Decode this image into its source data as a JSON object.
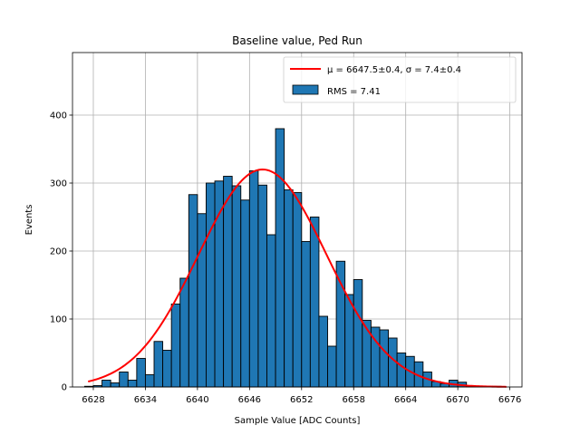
{
  "chart_data": {
    "type": "bar",
    "title": "Baseline value, Ped Run",
    "xlabel": "Sample Value [ADC Counts]",
    "ylabel": "Events",
    "xlim": [
      6625.6,
      6677.4
    ],
    "ylim": [
      0,
      492
    ],
    "grid": true,
    "legend_position": "top-right",
    "xticks": [
      6628,
      6634,
      6640,
      6646,
      6652,
      6658,
      6664,
      6670,
      6676
    ],
    "yticks": [
      0,
      100,
      200,
      300,
      400
    ],
    "bar_color": "#1f77b4",
    "fit_color": "#ff0000",
    "histogram": {
      "name": "RMS = 7.41",
      "bin_left": [
        6627.0,
        6628.0,
        6629.0,
        6630.0,
        6631.0,
        6632.0,
        6633.0,
        6634.0,
        6635.0,
        6636.0,
        6637.0,
        6638.0,
        6639.0,
        6640.0,
        6641.0,
        6642.0,
        6643.0,
        6644.0,
        6645.0,
        6646.0,
        6647.0,
        6648.0,
        6649.0,
        6650.0,
        6651.0,
        6652.0,
        6653.0,
        6654.0,
        6655.0,
        6656.0,
        6657.0,
        6658.0,
        6659.0,
        6660.0,
        6661.0,
        6662.0,
        6663.0,
        6664.0,
        6665.0,
        6666.0,
        6667.0,
        6668.0,
        6669.0,
        6670.0,
        6671.0,
        6672.0,
        6673.0,
        6674.0
      ],
      "bin_width": 1.0,
      "counts": [
        1,
        2,
        10,
        6,
        22,
        10,
        42,
        18,
        67,
        54,
        122,
        160,
        283,
        255,
        300,
        303,
        310,
        296,
        275,
        318,
        297,
        224,
        380,
        290,
        286,
        214,
        250,
        104,
        60,
        185,
        136,
        158,
        98,
        88,
        84,
        72,
        50,
        45,
        37,
        22,
        8,
        5,
        10,
        7,
        2,
        1,
        1,
        1
      ]
    },
    "fit": {
      "name": "μ = 6647.5±0.4, σ = 7.4±0.4",
      "mu": 6647.5,
      "sigma": 7.4,
      "amplitude": 320,
      "x_range": [
        6627.4,
        6675.6
      ]
    }
  }
}
